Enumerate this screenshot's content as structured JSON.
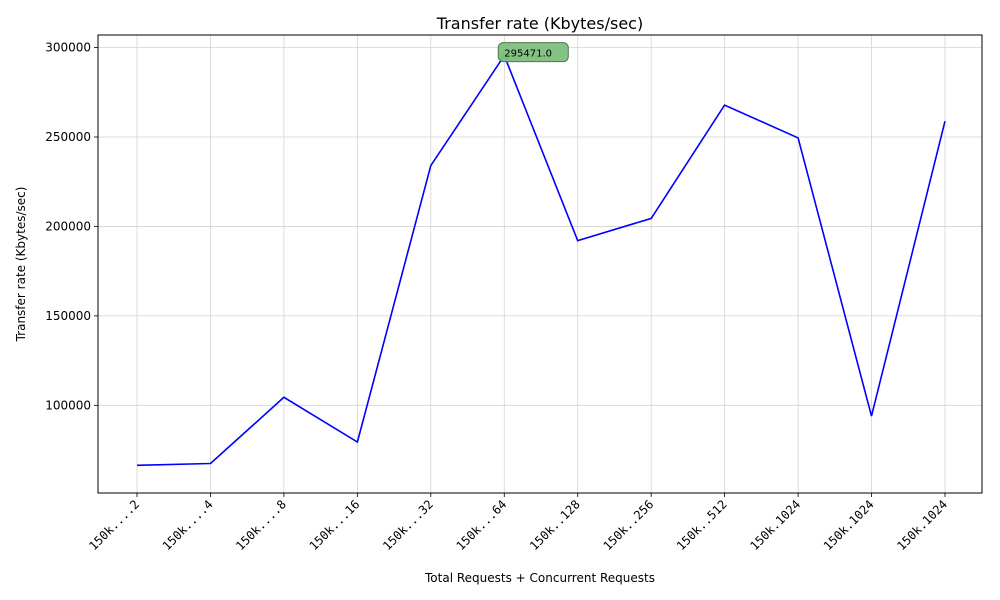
{
  "chart_data": {
    "type": "line",
    "title": "Transfer rate (Kbytes/sec)",
    "xlabel": "Total Requests + Concurrent Requests",
    "ylabel": "Transfer rate (Kbytes/sec)",
    "categories": [
      "150k....2",
      "150k....4",
      "150k....8",
      "150k...16",
      "150k...32",
      "150k...64",
      "150k..128",
      "150k..256",
      "150k..512",
      "150k.1024",
      "150k.1024",
      "150k.1024"
    ],
    "series": [
      {
        "values": [
          66500,
          67500,
          104500,
          79500,
          234000,
          295471.0,
          192000,
          204500,
          267800,
          249500,
          94000,
          258800
        ]
      }
    ],
    "ylim": [
      51000,
      307000
    ],
    "yticks": [
      100000,
      150000,
      200000,
      250000,
      300000
    ],
    "grid": true,
    "line_color": "#0000ff",
    "annotation": {
      "text": "295471.0",
      "index": 5,
      "value": 295471.0,
      "marker_color": "#008000",
      "box_color": "#7fbf7f"
    }
  }
}
